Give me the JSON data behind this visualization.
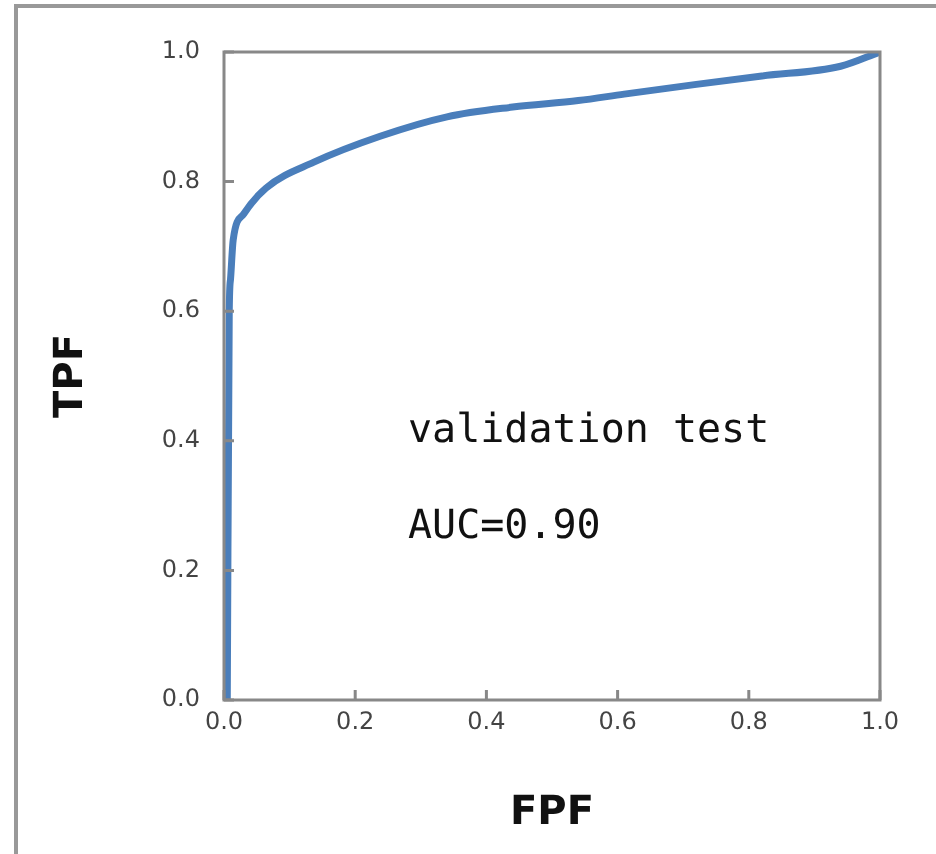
{
  "chart_data": {
    "type": "line",
    "xlabel": "FPF",
    "ylabel": "TPF",
    "annotations": [
      "validation test",
      "AUC=0.90"
    ],
    "xlim": [
      0,
      1
    ],
    "ylim": [
      0,
      1
    ],
    "xticks": [
      {
        "value": 0,
        "label": "0.0"
      },
      {
        "value": 0.2,
        "label": "0.2"
      },
      {
        "value": 0.4,
        "label": "0.4"
      },
      {
        "value": 0.6,
        "label": "0.6"
      },
      {
        "value": 0.8,
        "label": "0.8"
      },
      {
        "value": 1,
        "label": "1.0"
      }
    ],
    "yticks": [
      {
        "value": 0,
        "label": "0.0"
      },
      {
        "value": 0.2,
        "label": "0.2"
      },
      {
        "value": 0.4,
        "label": "0.4"
      },
      {
        "value": 0.6,
        "label": "0.6"
      },
      {
        "value": 0.8,
        "label": "0.8"
      },
      {
        "value": 1,
        "label": "1.0"
      }
    ],
    "grid": false,
    "legend": false,
    "marker": "none",
    "line_style": "solid",
    "series": [
      {
        "color": "#4a7ebb",
        "x": [
          0.005,
          0.008,
          0.01,
          0.014,
          0.03,
          0.064,
          0.137,
          0.238,
          0.34,
          0.44,
          0.54,
          0.61,
          0.72,
          0.82,
          0.94,
          1
        ],
        "values": [
          0,
          0.6,
          0.65,
          0.71,
          0.75,
          0.79,
          0.83,
          0.87,
          0.9,
          0.915,
          0.925,
          0.935,
          0.95,
          0.963,
          0.978,
          1
        ]
      }
    ]
  }
}
